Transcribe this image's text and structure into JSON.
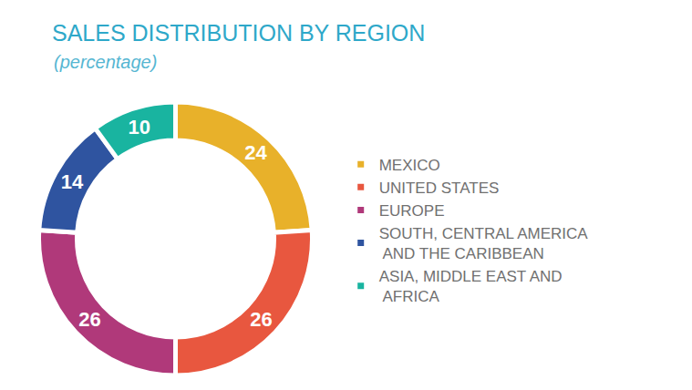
{
  "chart_data": {
    "type": "pie",
    "title": "SALES DISTRIBUTION BY REGION",
    "subtitle": "(percentage)",
    "categories": [
      "MEXICO",
      "UNITED STATES",
      "EUROPE",
      "SOUTH, CENTRAL AMERICA AND THE CARIBBEAN",
      "ASIA, MIDDLE EAST AND AFRICA"
    ],
    "values": [
      24,
      26,
      26,
      14,
      10
    ],
    "colors": [
      "#e8b12a",
      "#e8573f",
      "#b0397a",
      "#2f54a0",
      "#19b4a0"
    ],
    "data_labels": true,
    "legend": "right"
  }
}
